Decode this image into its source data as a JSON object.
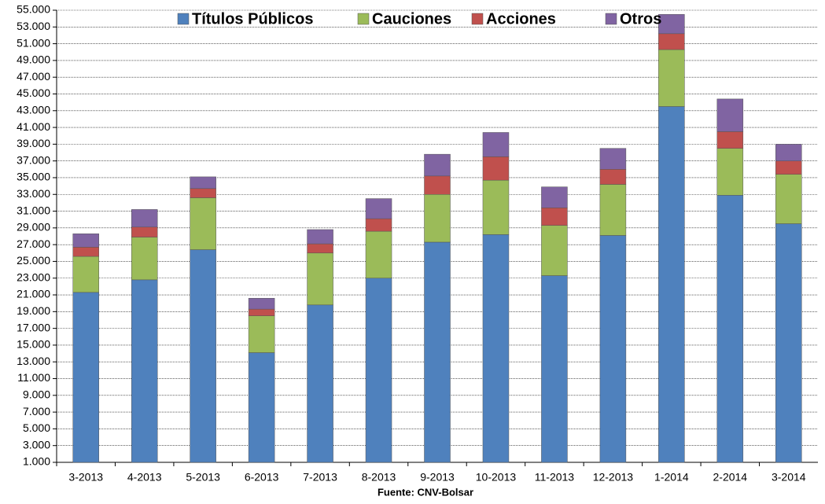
{
  "chart_data": {
    "type": "stacked_bar",
    "categories": [
      "3-2013",
      "4-2013",
      "5-2013",
      "6-2013",
      "7-2013",
      "8-2013",
      "9-2013",
      "10-2013",
      "11-2013",
      "12-2013",
      "1-2014",
      "2-2014",
      "3-2014"
    ],
    "series": [
      {
        "name": "Títulos Públicos",
        "color": "#4f81bd",
        "values": [
          21300,
          22800,
          26400,
          14100,
          19800,
          23000,
          27300,
          28200,
          23300,
          28100,
          43500,
          32900,
          29500
        ]
      },
      {
        "name": "Cauciones",
        "color": "#9bbb59",
        "values": [
          4300,
          5100,
          6200,
          4400,
          6200,
          5600,
          5700,
          6500,
          6000,
          6100,
          6800,
          5600,
          5900
        ]
      },
      {
        "name": "Acciones",
        "color": "#c0504d",
        "values": [
          1100,
          1200,
          1100,
          800,
          1100,
          1500,
          2200,
          2800,
          2100,
          1800,
          1900,
          2000,
          1600
        ]
      },
      {
        "name": "Otros",
        "color": "#8064a2",
        "values": [
          1600,
          2100,
          1400,
          1300,
          1700,
          2400,
          2600,
          2900,
          2500,
          2500,
          2300,
          3900,
          2000
        ]
      }
    ],
    "ylim": [
      1000,
      55000
    ],
    "yticks": [
      {
        "value": 1000,
        "label": "1.000"
      },
      {
        "value": 3000,
        "label": "3.000"
      },
      {
        "value": 5000,
        "label": "5.000"
      },
      {
        "value": 7000,
        "label": "7.000"
      },
      {
        "value": 9000,
        "label": "9.000"
      },
      {
        "value": 11000,
        "label": "11.000"
      },
      {
        "value": 13000,
        "label": "13.000"
      },
      {
        "value": 15000,
        "label": "15.000"
      },
      {
        "value": 17000,
        "label": "17.000"
      },
      {
        "value": 19000,
        "label": "19.000"
      },
      {
        "value": 21000,
        "label": "21.000"
      },
      {
        "value": 23000,
        "label": "23.000"
      },
      {
        "value": 25000,
        "label": "25.000"
      },
      {
        "value": 27000,
        "label": "27.000"
      },
      {
        "value": 29000,
        "label": "29.000"
      },
      {
        "value": 31000,
        "label": "31.000"
      },
      {
        "value": 33000,
        "label": "33.000"
      },
      {
        "value": 35000,
        "label": "35.000"
      },
      {
        "value": 37000,
        "label": "37.000"
      },
      {
        "value": 39000,
        "label": "39.000"
      },
      {
        "value": 41000,
        "label": "41.000"
      },
      {
        "value": 43000,
        "label": "43.000"
      },
      {
        "value": 45000,
        "label": "45.000"
      },
      {
        "value": 47000,
        "label": "47.000"
      },
      {
        "value": 49000,
        "label": "49.000"
      },
      {
        "value": 51000,
        "label": "51.000"
      },
      {
        "value": 53000,
        "label": "53.000"
      },
      {
        "value": 55000,
        "label": "55.000"
      }
    ],
    "grid": true,
    "legend": "top",
    "source": "Fuente: CNV-Bolsar"
  }
}
